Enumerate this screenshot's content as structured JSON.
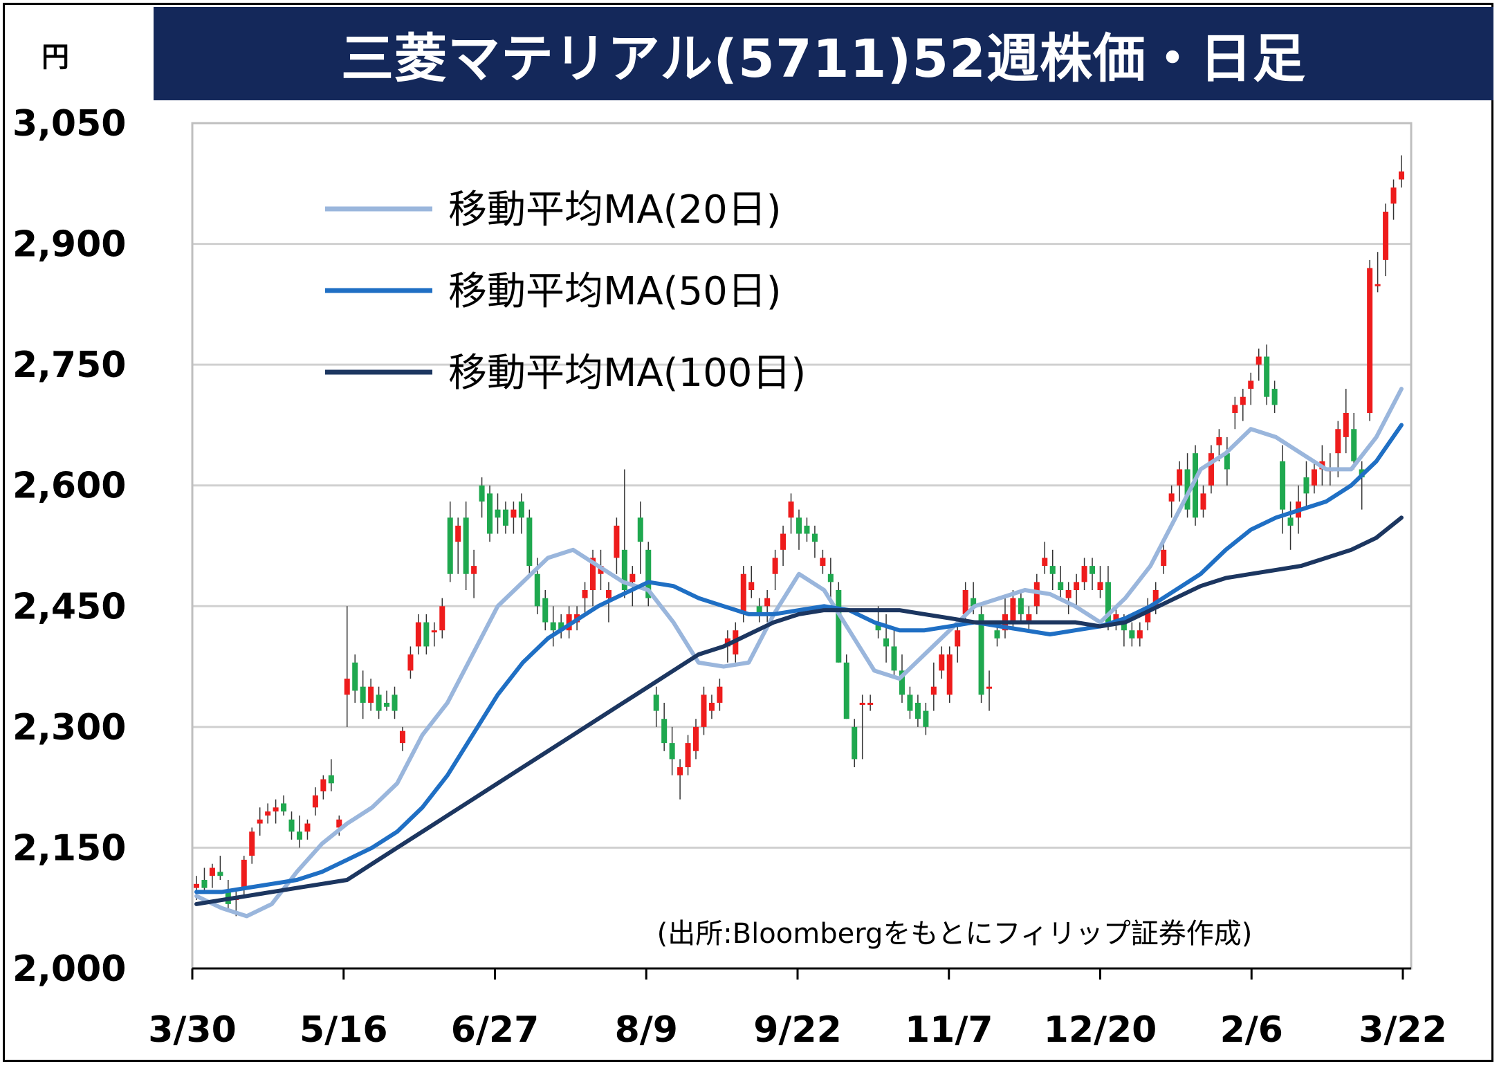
{
  "title": "三菱マテリアル(5711)52週株価・日足",
  "unit_label": "円",
  "source": "(出所:Bloombergをもとにフィリップ証券作成)",
  "colors": {
    "title_bg": "#14285a",
    "up_candle": "#ee1c1c",
    "down_candle": "#1fa84f",
    "ma20": "#9ab6dc",
    "ma50": "#1f6fc4",
    "ma100": "#1c3660",
    "grid": "#d0d0d0"
  },
  "chart_data": {
    "type": "candlestick",
    "title": "三菱マテリアル(5711)52週株価・日足",
    "ylabel": "円",
    "ylim": [
      2000,
      3050
    ],
    "yticks": [
      "2,000",
      "2,150",
      "2,300",
      "2,450",
      "2,600",
      "2,750",
      "2,900",
      "3,050"
    ],
    "ytick_values": [
      2000,
      2150,
      2300,
      2450,
      2600,
      2750,
      2900,
      3050
    ],
    "xticks": [
      "3/30",
      "5/16",
      "6/27",
      "8/9",
      "9/22",
      "11/7",
      "12/20",
      "2/6",
      "3/22"
    ],
    "grid": true,
    "legend_position": "top-left",
    "series": [
      {
        "name": "移動平均MA(20日)",
        "type": "line",
        "color": "#9ab6dc",
        "values": [
          2090,
          2075,
          2065,
          2080,
          2120,
          2155,
          2180,
          2200,
          2230,
          2290,
          2330,
          2390,
          2450,
          2480,
          2510,
          2520,
          2500,
          2480,
          2470,
          2430,
          2380,
          2375,
          2380,
          2440,
          2490,
          2470,
          2420,
          2370,
          2360,
          2390,
          2420,
          2450,
          2460,
          2470,
          2465,
          2450,
          2430,
          2460,
          2500,
          2560,
          2620,
          2640,
          2670,
          2660,
          2640,
          2620,
          2620,
          2660,
          2720
        ]
      },
      {
        "name": "移動平均MA(50日)",
        "type": "line",
        "color": "#1f6fc4",
        "values": [
          2095,
          2095,
          2100,
          2105,
          2110,
          2120,
          2135,
          2150,
          2170,
          2200,
          2240,
          2290,
          2340,
          2380,
          2410,
          2430,
          2450,
          2465,
          2480,
          2475,
          2460,
          2450,
          2440,
          2440,
          2445,
          2450,
          2445,
          2430,
          2420,
          2420,
          2425,
          2430,
          2425,
          2420,
          2415,
          2420,
          2425,
          2435,
          2450,
          2470,
          2490,
          2520,
          2545,
          2560,
          2570,
          2580,
          2600,
          2630,
          2675
        ]
      },
      {
        "name": "移動平均MA(100日)",
        "type": "line",
        "color": "#1c3660",
        "values": [
          2080,
          2085,
          2090,
          2095,
          2100,
          2105,
          2110,
          2130,
          2150,
          2170,
          2190,
          2210,
          2230,
          2250,
          2270,
          2290,
          2310,
          2330,
          2350,
          2370,
          2390,
          2400,
          2415,
          2430,
          2440,
          2445,
          2445,
          2445,
          2445,
          2440,
          2435,
          2430,
          2430,
          2430,
          2430,
          2430,
          2425,
          2430,
          2445,
          2460,
          2475,
          2485,
          2490,
          2495,
          2500,
          2510,
          2520,
          2535,
          2560
        ]
      }
    ],
    "candles": [
      {
        "o": 2100,
        "h": 2115,
        "l": 2085,
        "c": 2105
      },
      {
        "o": 2110,
        "h": 2125,
        "l": 2095,
        "c": 2100
      },
      {
        "o": 2115,
        "h": 2130,
        "l": 2100,
        "c": 2125
      },
      {
        "o": 2120,
        "h": 2140,
        "l": 2110,
        "c": 2115
      },
      {
        "o": 2095,
        "h": 2110,
        "l": 2070,
        "c": 2080
      },
      {
        "o": 2085,
        "h": 2100,
        "l": 2065,
        "c": 2090
      },
      {
        "o": 2100,
        "h": 2140,
        "l": 2090,
        "c": 2135
      },
      {
        "o": 2140,
        "h": 2175,
        "l": 2130,
        "c": 2170
      },
      {
        "o": 2180,
        "h": 2200,
        "l": 2165,
        "c": 2185
      },
      {
        "o": 2190,
        "h": 2205,
        "l": 2180,
        "c": 2195
      },
      {
        "o": 2195,
        "h": 2210,
        "l": 2180,
        "c": 2200
      },
      {
        "o": 2205,
        "h": 2215,
        "l": 2190,
        "c": 2195
      },
      {
        "o": 2185,
        "h": 2195,
        "l": 2160,
        "c": 2170
      },
      {
        "o": 2170,
        "h": 2190,
        "l": 2150,
        "c": 2160
      },
      {
        "o": 2170,
        "h": 2185,
        "l": 2160,
        "c": 2180
      },
      {
        "o": 2200,
        "h": 2225,
        "l": 2190,
        "c": 2215
      },
      {
        "o": 2220,
        "h": 2240,
        "l": 2210,
        "c": 2235
      },
      {
        "o": 2240,
        "h": 2260,
        "l": 2220,
        "c": 2230
      },
      {
        "o": 2175,
        "h": 2190,
        "l": 2165,
        "c": 2185
      },
      {
        "o": 2340,
        "h": 2450,
        "l": 2300,
        "c": 2360
      },
      {
        "o": 2380,
        "h": 2390,
        "l": 2330,
        "c": 2345
      },
      {
        "o": 2350,
        "h": 2370,
        "l": 2310,
        "c": 2330
      },
      {
        "o": 2330,
        "h": 2360,
        "l": 2320,
        "c": 2350
      },
      {
        "o": 2340,
        "h": 2350,
        "l": 2310,
        "c": 2320
      },
      {
        "o": 2330,
        "h": 2345,
        "l": 2320,
        "c": 2325
      },
      {
        "o": 2340,
        "h": 2350,
        "l": 2310,
        "c": 2320
      },
      {
        "o": 2280,
        "h": 2300,
        "l": 2270,
        "c": 2295
      },
      {
        "o": 2370,
        "h": 2400,
        "l": 2360,
        "c": 2390
      },
      {
        "o": 2400,
        "h": 2440,
        "l": 2390,
        "c": 2430
      },
      {
        "o": 2430,
        "h": 2440,
        "l": 2390,
        "c": 2400
      },
      {
        "o": 2420,
        "h": 2430,
        "l": 2400,
        "c": 2420
      },
      {
        "o": 2420,
        "h": 2460,
        "l": 2410,
        "c": 2450
      },
      {
        "o": 2560,
        "h": 2580,
        "l": 2480,
        "c": 2490
      },
      {
        "o": 2530,
        "h": 2560,
        "l": 2490,
        "c": 2550
      },
      {
        "o": 2560,
        "h": 2580,
        "l": 2470,
        "c": 2490
      },
      {
        "o": 2490,
        "h": 2520,
        "l": 2460,
        "c": 2500
      },
      {
        "o": 2600,
        "h": 2610,
        "l": 2560,
        "c": 2580
      },
      {
        "o": 2590,
        "h": 2600,
        "l": 2530,
        "c": 2540
      },
      {
        "o": 2570,
        "h": 2590,
        "l": 2540,
        "c": 2560
      },
      {
        "o": 2570,
        "h": 2580,
        "l": 2540,
        "c": 2550
      },
      {
        "o": 2560,
        "h": 2580,
        "l": 2540,
        "c": 2570
      },
      {
        "o": 2580,
        "h": 2590,
        "l": 2540,
        "c": 2560
      },
      {
        "o": 2560,
        "h": 2570,
        "l": 2490,
        "c": 2500
      },
      {
        "o": 2490,
        "h": 2510,
        "l": 2440,
        "c": 2450
      },
      {
        "o": 2460,
        "h": 2470,
        "l": 2420,
        "c": 2430
      },
      {
        "o": 2430,
        "h": 2450,
        "l": 2400,
        "c": 2420
      },
      {
        "o": 2430,
        "h": 2440,
        "l": 2410,
        "c": 2420
      },
      {
        "o": 2420,
        "h": 2450,
        "l": 2410,
        "c": 2440
      },
      {
        "o": 2430,
        "h": 2450,
        "l": 2420,
        "c": 2440
      },
      {
        "o": 2460,
        "h": 2480,
        "l": 2440,
        "c": 2470
      },
      {
        "o": 2470,
        "h": 2520,
        "l": 2450,
        "c": 2510
      },
      {
        "o": 2490,
        "h": 2520,
        "l": 2470,
        "c": 2500
      },
      {
        "o": 2460,
        "h": 2480,
        "l": 2430,
        "c": 2470
      },
      {
        "o": 2510,
        "h": 2560,
        "l": 2490,
        "c": 2550
      },
      {
        "o": 2520,
        "h": 2620,
        "l": 2460,
        "c": 2470
      },
      {
        "o": 2480,
        "h": 2500,
        "l": 2450,
        "c": 2490
      },
      {
        "o": 2560,
        "h": 2580,
        "l": 2490,
        "c": 2530
      },
      {
        "o": 2520,
        "h": 2530,
        "l": 2450,
        "c": 2460
      },
      {
        "o": 2340,
        "h": 2350,
        "l": 2300,
        "c": 2320
      },
      {
        "o": 2310,
        "h": 2330,
        "l": 2270,
        "c": 2280
      },
      {
        "o": 2280,
        "h": 2300,
        "l": 2240,
        "c": 2260
      },
      {
        "o": 2240,
        "h": 2260,
        "l": 2210,
        "c": 2250
      },
      {
        "o": 2250,
        "h": 2290,
        "l": 2240,
        "c": 2280
      },
      {
        "o": 2270,
        "h": 2310,
        "l": 2260,
        "c": 2300
      },
      {
        "o": 2300,
        "h": 2350,
        "l": 2290,
        "c": 2340
      },
      {
        "o": 2320,
        "h": 2340,
        "l": 2310,
        "c": 2330
      },
      {
        "o": 2330,
        "h": 2360,
        "l": 2320,
        "c": 2350
      },
      {
        "o": 2400,
        "h": 2420,
        "l": 2380,
        "c": 2410
      },
      {
        "o": 2390,
        "h": 2430,
        "l": 2380,
        "c": 2420
      },
      {
        "o": 2440,
        "h": 2500,
        "l": 2430,
        "c": 2490
      },
      {
        "o": 2470,
        "h": 2500,
        "l": 2460,
        "c": 2480
      },
      {
        "o": 2450,
        "h": 2460,
        "l": 2430,
        "c": 2440
      },
      {
        "o": 2450,
        "h": 2470,
        "l": 2430,
        "c": 2460
      },
      {
        "o": 2490,
        "h": 2520,
        "l": 2470,
        "c": 2510
      },
      {
        "o": 2520,
        "h": 2550,
        "l": 2500,
        "c": 2540
      },
      {
        "o": 2560,
        "h": 2590,
        "l": 2540,
        "c": 2580
      },
      {
        "o": 2560,
        "h": 2570,
        "l": 2520,
        "c": 2540
      },
      {
        "o": 2550,
        "h": 2560,
        "l": 2530,
        "c": 2540
      },
      {
        "o": 2540,
        "h": 2550,
        "l": 2510,
        "c": 2530
      },
      {
        "o": 2500,
        "h": 2520,
        "l": 2490,
        "c": 2510
      },
      {
        "o": 2490,
        "h": 2510,
        "l": 2460,
        "c": 2480
      },
      {
        "o": 2470,
        "h": 2480,
        "l": 2380,
        "c": 2380
      },
      {
        "o": 2380,
        "h": 2390,
        "l": 2310,
        "c": 2310
      },
      {
        "o": 2300,
        "h": 2310,
        "l": 2250,
        "c": 2260
      },
      {
        "o": 2330,
        "h": 2340,
        "l": 2260,
        "c": 2330
      },
      {
        "o": 2330,
        "h": 2340,
        "l": 2320,
        "c": 2330
      },
      {
        "o": 2430,
        "h": 2450,
        "l": 2410,
        "c": 2420
      },
      {
        "o": 2410,
        "h": 2440,
        "l": 2380,
        "c": 2400
      },
      {
        "o": 2400,
        "h": 2420,
        "l": 2360,
        "c": 2370
      },
      {
        "o": 2370,
        "h": 2390,
        "l": 2330,
        "c": 2340
      },
      {
        "o": 2340,
        "h": 2350,
        "l": 2310,
        "c": 2320
      },
      {
        "o": 2330,
        "h": 2340,
        "l": 2300,
        "c": 2310
      },
      {
        "o": 2320,
        "h": 2330,
        "l": 2290,
        "c": 2300
      },
      {
        "o": 2340,
        "h": 2380,
        "l": 2320,
        "c": 2350
      },
      {
        "o": 2370,
        "h": 2400,
        "l": 2360,
        "c": 2390
      },
      {
        "o": 2340,
        "h": 2400,
        "l": 2330,
        "c": 2390
      },
      {
        "o": 2400,
        "h": 2430,
        "l": 2380,
        "c": 2420
      },
      {
        "o": 2440,
        "h": 2480,
        "l": 2430,
        "c": 2470
      },
      {
        "o": 2460,
        "h": 2480,
        "l": 2440,
        "c": 2450
      },
      {
        "o": 2440,
        "h": 2450,
        "l": 2330,
        "c": 2340
      },
      {
        "o": 2350,
        "h": 2370,
        "l": 2320,
        "c": 2350
      },
      {
        "o": 2420,
        "h": 2430,
        "l": 2400,
        "c": 2410
      },
      {
        "o": 2420,
        "h": 2460,
        "l": 2410,
        "c": 2440
      },
      {
        "o": 2430,
        "h": 2470,
        "l": 2420,
        "c": 2460
      },
      {
        "o": 2460,
        "h": 2470,
        "l": 2430,
        "c": 2440
      },
      {
        "o": 2430,
        "h": 2450,
        "l": 2420,
        "c": 2440
      },
      {
        "o": 2450,
        "h": 2490,
        "l": 2440,
        "c": 2480
      },
      {
        "o": 2500,
        "h": 2530,
        "l": 2490,
        "c": 2510
      },
      {
        "o": 2500,
        "h": 2520,
        "l": 2470,
        "c": 2490
      },
      {
        "o": 2480,
        "h": 2500,
        "l": 2460,
        "c": 2470
      },
      {
        "o": 2460,
        "h": 2480,
        "l": 2440,
        "c": 2470
      },
      {
        "o": 2470,
        "h": 2490,
        "l": 2450,
        "c": 2480
      },
      {
        "o": 2480,
        "h": 2510,
        "l": 2470,
        "c": 2500
      },
      {
        "o": 2500,
        "h": 2510,
        "l": 2470,
        "c": 2490
      },
      {
        "o": 2470,
        "h": 2500,
        "l": 2460,
        "c": 2480
      },
      {
        "o": 2480,
        "h": 2500,
        "l": 2420,
        "c": 2430
      },
      {
        "o": 2430,
        "h": 2450,
        "l": 2420,
        "c": 2440
      },
      {
        "o": 2430,
        "h": 2440,
        "l": 2400,
        "c": 2420
      },
      {
        "o": 2420,
        "h": 2430,
        "l": 2400,
        "c": 2410
      },
      {
        "o": 2410,
        "h": 2430,
        "l": 2400,
        "c": 2420
      },
      {
        "o": 2430,
        "h": 2460,
        "l": 2420,
        "c": 2450
      },
      {
        "o": 2450,
        "h": 2480,
        "l": 2440,
        "c": 2470
      },
      {
        "o": 2500,
        "h": 2530,
        "l": 2490,
        "c": 2520
      },
      {
        "o": 2580,
        "h": 2600,
        "l": 2560,
        "c": 2590
      },
      {
        "o": 2600,
        "h": 2630,
        "l": 2580,
        "c": 2620
      },
      {
        "o": 2620,
        "h": 2640,
        "l": 2560,
        "c": 2570
      },
      {
        "o": 2640,
        "h": 2650,
        "l": 2550,
        "c": 2560
      },
      {
        "o": 2570,
        "h": 2600,
        "l": 2560,
        "c": 2590
      },
      {
        "o": 2600,
        "h": 2650,
        "l": 2590,
        "c": 2640
      },
      {
        "o": 2650,
        "h": 2670,
        "l": 2630,
        "c": 2660
      },
      {
        "o": 2640,
        "h": 2660,
        "l": 2600,
        "c": 2620
      },
      {
        "o": 2690,
        "h": 2710,
        "l": 2670,
        "c": 2700
      },
      {
        "o": 2700,
        "h": 2720,
        "l": 2680,
        "c": 2710
      },
      {
        "o": 2720,
        "h": 2740,
        "l": 2700,
        "c": 2730
      },
      {
        "o": 2750,
        "h": 2770,
        "l": 2730,
        "c": 2760
      },
      {
        "o": 2760,
        "h": 2775,
        "l": 2700,
        "c": 2710
      },
      {
        "o": 2720,
        "h": 2730,
        "l": 2690,
        "c": 2700
      },
      {
        "o": 2630,
        "h": 2650,
        "l": 2540,
        "c": 2570
      },
      {
        "o": 2560,
        "h": 2580,
        "l": 2520,
        "c": 2550
      },
      {
        "o": 2560,
        "h": 2600,
        "l": 2540,
        "c": 2580
      },
      {
        "o": 2610,
        "h": 2630,
        "l": 2570,
        "c": 2590
      },
      {
        "o": 2600,
        "h": 2630,
        "l": 2590,
        "c": 2620
      },
      {
        "o": 2620,
        "h": 2650,
        "l": 2600,
        "c": 2630
      },
      {
        "o": 2620,
        "h": 2640,
        "l": 2600,
        "c": 2620
      },
      {
        "o": 2640,
        "h": 2680,
        "l": 2610,
        "c": 2670
      },
      {
        "o": 2660,
        "h": 2720,
        "l": 2640,
        "c": 2690
      },
      {
        "o": 2670,
        "h": 2690,
        "l": 2620,
        "c": 2630
      },
      {
        "o": 2620,
        "h": 2630,
        "l": 2570,
        "c": 2610
      },
      {
        "o": 2690,
        "h": 2880,
        "l": 2680,
        "c": 2870
      },
      {
        "o": 2850,
        "h": 2890,
        "l": 2840,
        "c": 2850
      },
      {
        "o": 2880,
        "h": 2950,
        "l": 2860,
        "c": 2940
      },
      {
        "o": 2950,
        "h": 2980,
        "l": 2930,
        "c": 2970
      },
      {
        "o": 2980,
        "h": 3010,
        "l": 2970,
        "c": 2990
      }
    ]
  },
  "legend": [
    {
      "label": "移動平均MA(20日)",
      "color": "#9ab6dc"
    },
    {
      "label": "移動平均MA(50日)",
      "color": "#1f6fc4"
    },
    {
      "label": "移動平均MA(100日)",
      "color": "#1c3660"
    }
  ]
}
